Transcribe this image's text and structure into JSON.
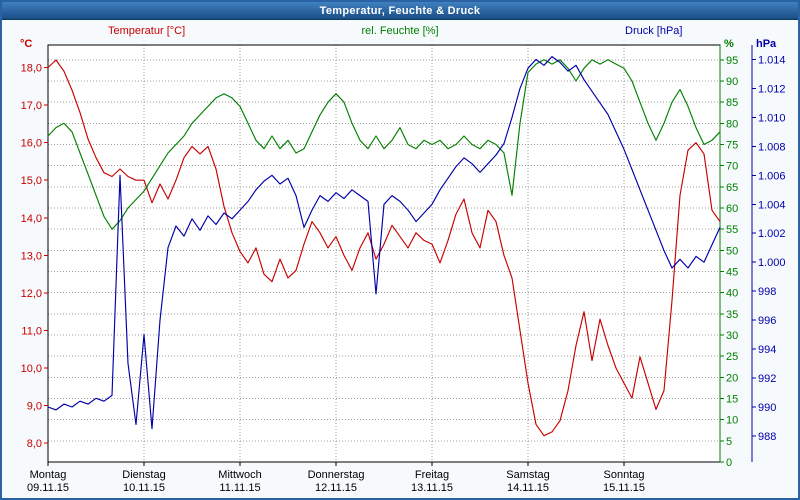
{
  "window": {
    "title": "Temperatur, Feuchte & Druck",
    "border_color": "#2a63a5",
    "titlebar_gradient": [
      "#4080c0",
      "#1a4e86"
    ],
    "title_color": "#ffffff"
  },
  "chart_data": {
    "type": "line",
    "title": "Temperatur, Feuchte & Druck",
    "grid": "dotted",
    "legend_position": "top",
    "plot_background": "#ffffff",
    "x_axis": {
      "unit": "time",
      "start_hour": 0,
      "end_hour": 168,
      "sample_step_hours": 2,
      "day_ticks": [
        {
          "hour": 0,
          "weekday": "Montag",
          "date": "09.11.15"
        },
        {
          "hour": 24,
          "weekday": "Dienstag",
          "date": "10.11.15"
        },
        {
          "hour": 48,
          "weekday": "Mittwoch",
          "date": "11.11.15"
        },
        {
          "hour": 72,
          "weekday": "Donnerstag",
          "date": "12.11.15"
        },
        {
          "hour": 96,
          "weekday": "Freitag",
          "date": "13.11.15"
        },
        {
          "hour": 120,
          "weekday": "Samstag",
          "date": "14.11.15"
        },
        {
          "hour": 144,
          "weekday": "Sonntag",
          "date": "15.11.15"
        }
      ]
    },
    "axes": {
      "temperature": {
        "label": "Temperatur [°C]",
        "unit": "°C",
        "side": "left",
        "color": "#c80000",
        "min": 7.5,
        "max": 18.6,
        "tick_values": [
          8,
          9,
          10,
          11,
          12,
          13,
          14,
          15,
          16,
          17,
          18
        ],
        "tick_labels": [
          "8,0",
          "9,0",
          "10,0",
          "11,0",
          "12,0",
          "13,0",
          "14,0",
          "15,0",
          "16,0",
          "17,0",
          "18,0"
        ]
      },
      "humidity": {
        "label": "rel. Feuchte [%]",
        "unit": "%",
        "side": "right-inner",
        "color": "#008000",
        "min": 0,
        "max": 98.5,
        "tick_values": [
          0,
          5,
          10,
          15,
          20,
          25,
          30,
          35,
          40,
          45,
          50,
          55,
          60,
          65,
          70,
          75,
          80,
          85,
          90,
          95
        ],
        "tick_labels": [
          "0",
          "5",
          "10",
          "15",
          "20",
          "25",
          "30",
          "35",
          "40",
          "45",
          "50",
          "55",
          "60",
          "65",
          "70",
          "75",
          "80",
          "85",
          "90",
          "95"
        ]
      },
      "pressure": {
        "label": "Druck [hPa]",
        "unit": "hPa",
        "side": "right-outer",
        "color": "#0000aa",
        "min": 986.2,
        "max": 1015.0,
        "tick_values": [
          988,
          990,
          992,
          994,
          996,
          998,
          1000,
          1002,
          1004,
          1006,
          1008,
          1010,
          1012,
          1014
        ],
        "tick_labels": [
          "988",
          "990",
          "992",
          "994",
          "996",
          "998",
          "1.000",
          "1.002",
          "1.004",
          "1.006",
          "1.008",
          "1.010",
          "1.012",
          "1.014"
        ]
      }
    },
    "series": [
      {
        "id": "temperature",
        "name": "Temperatur",
        "axis": "temperature",
        "unit": "°C",
        "color": "#c80000",
        "values": [
          18.0,
          18.2,
          17.9,
          17.4,
          16.8,
          16.1,
          15.6,
          15.2,
          15.1,
          15.3,
          15.1,
          15.0,
          15.0,
          14.4,
          14.9,
          14.5,
          15.0,
          15.6,
          15.9,
          15.7,
          15.9,
          15.3,
          14.3,
          13.6,
          13.1,
          12.8,
          13.2,
          12.5,
          12.3,
          12.9,
          12.4,
          12.6,
          13.3,
          13.9,
          13.6,
          13.2,
          13.5,
          13.0,
          12.6,
          13.2,
          13.6,
          12.9,
          13.3,
          13.8,
          13.5,
          13.2,
          13.6,
          13.4,
          13.3,
          12.8,
          13.4,
          14.1,
          14.5,
          13.6,
          13.2,
          14.2,
          13.9,
          13.0,
          12.4,
          11.0,
          9.6,
          8.5,
          8.2,
          8.3,
          8.6,
          9.4,
          10.6,
          11.5,
          10.2,
          11.3,
          10.6,
          10.0,
          9.6,
          9.2,
          10.3,
          9.6,
          8.9,
          9.4,
          11.8,
          14.6,
          15.8,
          16.0,
          15.7,
          14.2,
          13.9
        ]
      },
      {
        "id": "humidity",
        "name": "rel. Feuchte",
        "axis": "humidity",
        "unit": "%",
        "color": "#008000",
        "values": [
          77,
          79,
          80,
          78,
          73,
          68,
          63,
          58,
          55,
          57,
          60,
          62,
          64,
          67,
          70,
          73,
          75,
          77,
          80,
          82,
          84,
          86,
          87,
          86,
          84,
          80,
          76,
          74,
          77,
          74,
          76,
          73,
          74,
          78,
          82,
          85,
          87,
          85,
          80,
          76,
          74,
          77,
          74,
          76,
          79,
          75,
          74,
          76,
          75,
          76,
          74,
          75,
          77,
          75,
          74,
          76,
          75,
          73,
          63,
          80,
          92,
          94,
          95,
          94,
          95,
          93,
          90,
          93,
          95,
          94,
          95,
          94,
          93,
          90,
          85,
          80,
          76,
          80,
          85,
          88,
          84,
          79,
          75,
          76,
          78
        ]
      },
      {
        "id": "pressure",
        "name": "Druck",
        "axis": "pressure",
        "unit": "hPa",
        "color": "#0000aa",
        "values": [
          990.0,
          989.8,
          990.2,
          990.0,
          990.4,
          990.2,
          990.6,
          990.4,
          990.8,
          1006.0,
          993.0,
          988.8,
          995.0,
          988.5,
          996.0,
          1001.0,
          1002.5,
          1001.8,
          1003.0,
          1002.2,
          1003.2,
          1002.6,
          1003.4,
          1003.0,
          1003.6,
          1004.2,
          1005.0,
          1005.6,
          1006.0,
          1005.4,
          1005.8,
          1004.6,
          1002.4,
          1003.6,
          1004.6,
          1004.2,
          1004.8,
          1004.4,
          1005.0,
          1004.6,
          1004.2,
          997.8,
          1004.0,
          1004.6,
          1004.2,
          1003.6,
          1002.8,
          1003.4,
          1004.0,
          1005.0,
          1005.8,
          1006.6,
          1007.2,
          1006.8,
          1006.2,
          1006.8,
          1007.4,
          1008.2,
          1010.0,
          1012.0,
          1013.4,
          1014.0,
          1013.6,
          1014.2,
          1013.8,
          1013.2,
          1013.6,
          1012.6,
          1011.8,
          1011.0,
          1010.2,
          1009.0,
          1007.8,
          1006.4,
          1005.0,
          1003.6,
          1002.2,
          1000.8,
          999.6,
          1000.2,
          999.6,
          1000.4,
          1000.0,
          1001.2,
          1002.4
        ]
      }
    ]
  }
}
